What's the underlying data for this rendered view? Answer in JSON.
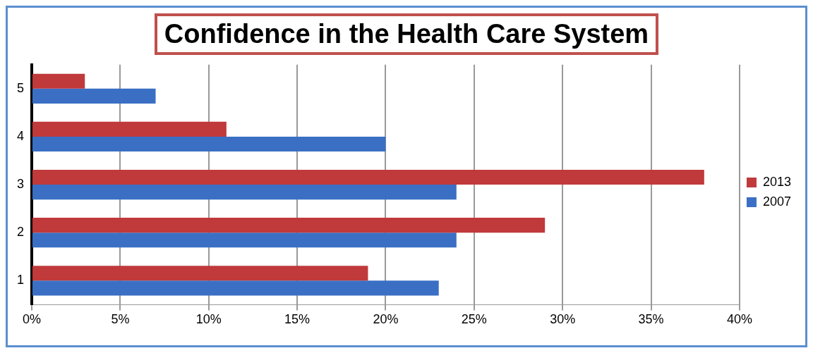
{
  "chart_data": {
    "type": "bar",
    "title": "Confidence in the Health Care System",
    "orientation": "horizontal",
    "categories": [
      "5",
      "4",
      "3",
      "2",
      "1"
    ],
    "series": [
      {
        "name": "2013",
        "color": "#c0393b",
        "values": [
          3,
          11,
          38,
          29,
          19
        ]
      },
      {
        "name": "2007",
        "color": "#3a6fc4",
        "values": [
          7,
          20,
          24,
          24,
          23
        ]
      }
    ],
    "xlim": [
      0,
      40
    ],
    "xticks": [
      {
        "value": 0,
        "label": "0%"
      },
      {
        "value": 5,
        "label": "5%"
      },
      {
        "value": 10,
        "label": "10%"
      },
      {
        "value": 15,
        "label": "15%"
      },
      {
        "value": 20,
        "label": "20%"
      },
      {
        "value": 25,
        "label": "25%"
      },
      {
        "value": 30,
        "label": "30%"
      },
      {
        "value": 35,
        "label": "35%"
      },
      {
        "value": 40,
        "label": "40%"
      }
    ],
    "grid": "x",
    "legend": "right"
  }
}
